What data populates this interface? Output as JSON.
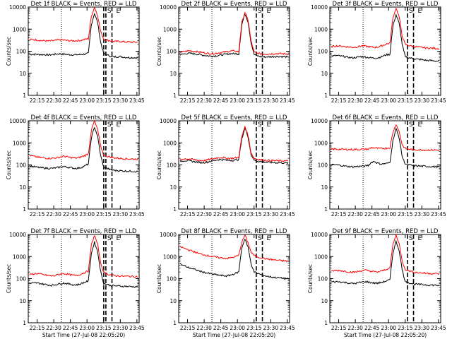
{
  "chart_data": [
    {
      "type": "line",
      "title": "Det 1f BLACK = Events, RED = LLD",
      "xlabel": "",
      "ylabel": "Counts/sec",
      "yscale": "log",
      "ylim": [
        1,
        10000
      ],
      "x_ticks": [
        "22:15",
        "22:30",
        "22:45",
        "23:00",
        "23:15",
        "23:30",
        "23:45"
      ],
      "y_ticks": [
        "1",
        "10",
        "100",
        "1000",
        "10000"
      ],
      "markers": [
        "S",
        "E"
      ],
      "series": [
        {
          "name": "Events",
          "color": "#000000",
          "values": [
            72,
            72,
            73,
            71,
            70,
            70,
            68,
            69,
            72,
            75,
            76,
            73,
            71,
            70,
            69,
            69,
            70,
            72,
            75,
            80,
            1600,
            5200,
            2000,
            260,
            75,
            70,
            60,
            55,
            56,
            58,
            55,
            53,
            52,
            52,
            51,
            50
          ]
        },
        {
          "name": "LLD",
          "color": "#ff0000",
          "values": [
            340,
            335,
            330,
            315,
            300,
            295,
            290,
            295,
            305,
            320,
            330,
            320,
            305,
            300,
            295,
            300,
            305,
            320,
            345,
            370,
            3800,
            9800,
            4200,
            800,
            350,
            320,
            300,
            280,
            275,
            280,
            270,
            265,
            262,
            260,
            258,
            255
          ]
        }
      ]
    },
    {
      "type": "line",
      "title": "Det 2f BLACK = Events, RED = LLD",
      "xlabel": "",
      "ylabel": "Counts/sec",
      "yscale": "log",
      "ylim": [
        1,
        10000
      ],
      "x_ticks": [
        "22:15",
        "22:30",
        "22:45",
        "23:00",
        "23:15",
        "23:30",
        "23:45"
      ],
      "y_ticks": [
        "1",
        "10",
        "100",
        "1000",
        "10000"
      ],
      "markers": [
        "S",
        "E"
      ],
      "series": [
        {
          "name": "Events",
          "color": "#000000",
          "values": [
            70,
            74,
            78,
            80,
            78,
            75,
            72,
            68,
            64,
            62,
            60,
            61,
            63,
            66,
            70,
            74,
            77,
            78,
            77,
            74,
            1600,
            5000,
            2200,
            240,
            70,
            62,
            57,
            55,
            55,
            56,
            57,
            58,
            58,
            57,
            56,
            55
          ]
        },
        {
          "name": "LLD",
          "color": "#ff0000",
          "values": [
            90,
            95,
            100,
            105,
            102,
            98,
            94,
            88,
            84,
            80,
            78,
            79,
            82,
            86,
            90,
            96,
            100,
            102,
            100,
            96,
            2000,
            5800,
            2600,
            290,
            90,
            82,
            77,
            75,
            75,
            76,
            77,
            78,
            78,
            77,
            76,
            75
          ]
        }
      ]
    },
    {
      "type": "line",
      "title": "Det 3f BLACK = Events, RED = LLD",
      "xlabel": "",
      "ylabel": "Counts/sec",
      "yscale": "log",
      "ylim": [
        1,
        10000
      ],
      "x_ticks": [
        "22:15",
        "22:30",
        "22:45",
        "23:00",
        "23:15",
        "23:30",
        "23:45"
      ],
      "y_ticks": [
        "1",
        "10",
        "100",
        "1000",
        "10000"
      ],
      "markers": [
        "S",
        "E"
      ],
      "series": [
        {
          "name": "Events",
          "color": "#000000",
          "values": [
            60,
            62,
            63,
            60,
            58,
            55,
            52,
            50,
            52,
            55,
            57,
            55,
            52,
            50,
            49,
            50,
            55,
            62,
            70,
            72,
            1400,
            4500,
            1800,
            200,
            55,
            52,
            48,
            45,
            43,
            42,
            40,
            38,
            38,
            37,
            36,
            35
          ]
        },
        {
          "name": "LLD",
          "color": "#ff0000",
          "values": [
            160,
            170,
            175,
            170,
            165,
            160,
            155,
            150,
            155,
            165,
            175,
            170,
            160,
            155,
            150,
            155,
            170,
            190,
            215,
            230,
            3300,
            9000,
            3600,
            480,
            200,
            185,
            170,
            160,
            155,
            150,
            145,
            140,
            138,
            136,
            134,
            132
          ]
        }
      ]
    },
    {
      "type": "line",
      "title": "Det 4f BLACK = Events, RED = LLD",
      "xlabel": "",
      "ylabel": "Counts/sec",
      "yscale": "log",
      "ylim": [
        1,
        10000
      ],
      "x_ticks": [
        "22:15",
        "22:30",
        "22:45",
        "23:00",
        "23:15",
        "23:30",
        "23:45"
      ],
      "y_ticks": [
        "1",
        "10",
        "100",
        "1000",
        "10000"
      ],
      "markers": [
        "S",
        "E"
      ],
      "series": [
        {
          "name": "Events",
          "color": "#000000",
          "values": [
            90,
            85,
            80,
            76,
            74,
            72,
            70,
            70,
            72,
            75,
            80,
            84,
            80,
            76,
            72,
            70,
            72,
            80,
            92,
            110,
            1700,
            5200,
            2000,
            260,
            80,
            70,
            62,
            58,
            56,
            55,
            54,
            53,
            52,
            52,
            51,
            50
          ]
        },
        {
          "name": "LLD",
          "color": "#ff0000",
          "values": [
            270,
            250,
            235,
            220,
            210,
            205,
            200,
            200,
            205,
            215,
            230,
            245,
            235,
            220,
            210,
            205,
            215,
            240,
            270,
            320,
            3800,
            9800,
            4000,
            700,
            280,
            250,
            230,
            215,
            205,
            200,
            195,
            190,
            188,
            186,
            184,
            182
          ]
        }
      ]
    },
    {
      "type": "line",
      "title": "Det 5f BLACK = Events, RED = LLD",
      "xlabel": "",
      "ylabel": "Counts/sec",
      "yscale": "log",
      "ylim": [
        1,
        10000
      ],
      "x_ticks": [
        "22:15",
        "22:30",
        "22:45",
        "23:00",
        "23:15",
        "23:30",
        "23:45"
      ],
      "y_ticks": [
        "1",
        "10",
        "100",
        "1000",
        "10000"
      ],
      "markers": [
        "S",
        "E"
      ],
      "series": [
        {
          "name": "Events",
          "color": "#000000",
          "values": [
            150,
            155,
            158,
            152,
            145,
            138,
            132,
            128,
            130,
            138,
            148,
            160,
            170,
            175,
            172,
            165,
            160,
            162,
            168,
            175,
            1500,
            4800,
            1900,
            300,
            165,
            150,
            140,
            135,
            132,
            130,
            128,
            126,
            125,
            124,
            123,
            122
          ]
        },
        {
          "name": "LLD",
          "color": "#ff0000",
          "values": [
            180,
            185,
            190,
            185,
            178,
            170,
            162,
            158,
            160,
            170,
            182,
            196,
            210,
            216,
            212,
            204,
            198,
            200,
            208,
            216,
            1900,
            5500,
            2200,
            360,
            200,
            182,
            172,
            166,
            162,
            160,
            157,
            155,
            154,
            153,
            152,
            150
          ]
        }
      ]
    },
    {
      "type": "line",
      "title": "Det 6f BLACK = Events, RED = LLD",
      "xlabel": "",
      "ylabel": "Counts/sec",
      "yscale": "log",
      "ylim": [
        1,
        10000
      ],
      "x_ticks": [
        "22:15",
        "22:30",
        "22:45",
        "23:00",
        "23:15",
        "23:30",
        "23:45"
      ],
      "y_ticks": [
        "1",
        "10",
        "100",
        "1000",
        "10000"
      ],
      "markers": [
        "S",
        "E"
      ],
      "series": [
        {
          "name": "Events",
          "color": "#000000",
          "values": [
            100,
            102,
            100,
            96,
            90,
            86,
            84,
            82,
            84,
            86,
            88,
            90,
            95,
            130,
            145,
            120,
            110,
            112,
            118,
            125,
            1300,
            4300,
            1700,
            230,
            112,
            102,
            96,
            92,
            90,
            88,
            87,
            86,
            85,
            84,
            83,
            82
          ]
        },
        {
          "name": "LLD",
          "color": "#ff0000",
          "values": [
            520,
            520,
            515,
            510,
            505,
            500,
            500,
            500,
            500,
            505,
            510,
            515,
            520,
            600,
            590,
            560,
            550,
            560,
            580,
            600,
            3000,
            7000,
            3200,
            800,
            560,
            520,
            500,
            490,
            485,
            480,
            478,
            476,
            475,
            474,
            472,
            470
          ]
        }
      ]
    },
    {
      "type": "line",
      "title": "Det 7f BLACK = Events, RED = LLD",
      "xlabel": "Start Time (27-Jul-08 22:05:20)",
      "ylabel": "Counts/sec",
      "yscale": "log",
      "ylim": [
        1,
        10000
      ],
      "x_ticks": [
        "22:15",
        "22:30",
        "22:45",
        "23:00",
        "23:15",
        "23:30",
        "23:45"
      ],
      "y_ticks": [
        "1",
        "10",
        "100",
        "1000",
        "10000"
      ],
      "markers": [
        "S",
        "E"
      ],
      "series": [
        {
          "name": "Events",
          "color": "#000000",
          "values": [
            60,
            62,
            64,
            62,
            58,
            55,
            52,
            50,
            52,
            56,
            60,
            63,
            60,
            56,
            53,
            52,
            55,
            62,
            70,
            78,
            1400,
            4500,
            1700,
            210,
            60,
            55,
            50,
            48,
            47,
            46,
            45,
            45,
            44,
            44,
            43,
            43
          ]
        },
        {
          "name": "LLD",
          "color": "#ff0000",
          "values": [
            150,
            160,
            170,
            165,
            155,
            145,
            138,
            132,
            135,
            148,
            160,
            170,
            162,
            150,
            142,
            138,
            148,
            170,
            195,
            220,
            3400,
            9200,
            3600,
            520,
            190,
            165,
            150,
            140,
            135,
            132,
            130,
            128,
            127,
            126,
            125,
            124
          ]
        }
      ]
    },
    {
      "type": "line",
      "title": "Det 8f BLACK = Events, RED = LLD",
      "xlabel": "Start Time (27-Jul-08 22:05:20)",
      "ylabel": "Counts/sec",
      "yscale": "log",
      "ylim": [
        1,
        10000
      ],
      "x_ticks": [
        "22:15",
        "22:30",
        "22:45",
        "23:00",
        "23:15",
        "23:30",
        "23:45"
      ],
      "y_ticks": [
        "1",
        "10",
        "100",
        "1000",
        "10000"
      ],
      "markers": [
        "S",
        "E"
      ],
      "series": [
        {
          "name": "Events",
          "color": "#000000",
          "values": [
            450,
            400,
            350,
            310,
            280,
            250,
            225,
            205,
            190,
            175,
            165,
            155,
            148,
            140,
            135,
            132,
            140,
            155,
            175,
            200,
            2500,
            6500,
            2600,
            480,
            200,
            175,
            155,
            140,
            130,
            122,
            116,
            112,
            108,
            105,
            102,
            100
          ]
        },
        {
          "name": "LLD",
          "color": "#ff0000",
          "values": [
            2800,
            2500,
            2200,
            1950,
            1750,
            1550,
            1400,
            1280,
            1180,
            1100,
            1030,
            970,
            920,
            880,
            850,
            830,
            860,
            920,
            1000,
            1150,
            4500,
            9500,
            4200,
            1600,
            1100,
            980,
            900,
            840,
            790,
            750,
            720,
            690,
            670,
            650,
            630,
            610
          ]
        }
      ]
    },
    {
      "type": "line",
      "title": "Det 9f BLACK = Events, RED = LLD",
      "xlabel": "Start Time (27-Jul-08 22:05:20)",
      "ylabel": "Counts/sec",
      "yscale": "log",
      "ylim": [
        1,
        10000
      ],
      "x_ticks": [
        "22:15",
        "22:30",
        "22:45",
        "23:00",
        "23:15",
        "23:30",
        "23:45"
      ],
      "y_ticks": [
        "1",
        "10",
        "100",
        "1000",
        "10000"
      ],
      "markers": [
        "S",
        "E"
      ],
      "series": [
        {
          "name": "Events",
          "color": "#000000",
          "values": [
            70,
            72,
            73,
            71,
            68,
            65,
            62,
            60,
            62,
            66,
            70,
            73,
            70,
            66,
            63,
            62,
            66,
            72,
            80,
            88,
            1500,
            4800,
            1900,
            240,
            72,
            66,
            60,
            57,
            55,
            54,
            53,
            52,
            51,
            51,
            50,
            50
          ]
        },
        {
          "name": "LLD",
          "color": "#ff0000",
          "values": [
            220,
            230,
            235,
            230,
            220,
            210,
            200,
            195,
            200,
            215,
            230,
            240,
            230,
            215,
            205,
            200,
            215,
            240,
            270,
            300,
            3600,
            9500,
            3800,
            620,
            260,
            230,
            210,
            195,
            188,
            182,
            178,
            175,
            172,
            170,
            168,
            166
          ]
        }
      ]
    }
  ]
}
